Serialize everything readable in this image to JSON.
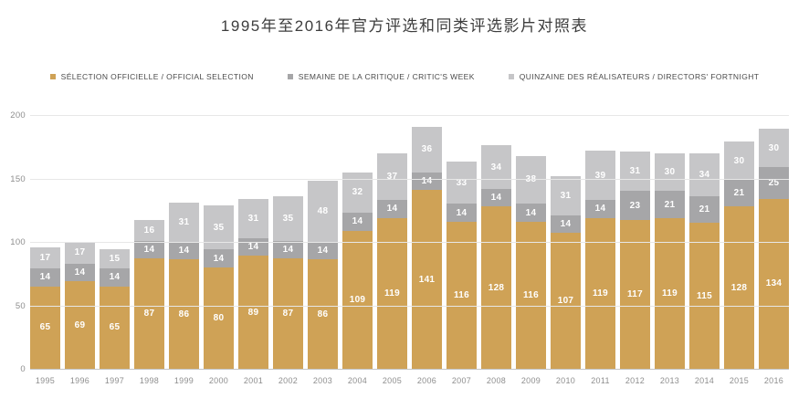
{
  "chart_data": {
    "type": "bar",
    "stacked": true,
    "title": "1995年至2016年官方评选和同类评选影片对照表",
    "categories": [
      "1995",
      "1996",
      "1997",
      "1998",
      "1999",
      "2000",
      "2001",
      "2002",
      "2003",
      "2004",
      "2005",
      "2006",
      "2007",
      "2008",
      "2009",
      "2010",
      "2011",
      "2012",
      "2013",
      "2014",
      "2015",
      "2016"
    ],
    "series": [
      {
        "name": "SÉLECTION OFFICIELLE / OFFICIAL SELECTION",
        "color": "#CFA256",
        "values": [
          65,
          69,
          65,
          87,
          86,
          80,
          89,
          87,
          86,
          109,
          119,
          141,
          116,
          128,
          116,
          107,
          119,
          117,
          119,
          115,
          128,
          134
        ]
      },
      {
        "name": "SEMAINE DE LA CRITIQUE / CRITIC'S WEEK",
        "color": "#A6A6A8",
        "values": [
          14,
          14,
          14,
          14,
          14,
          14,
          14,
          14,
          14,
          14,
          14,
          14,
          14,
          14,
          14,
          14,
          14,
          23,
          21,
          21,
          21,
          25
        ]
      },
      {
        "name": "QUINZAINE DES RÉALISATEURS / DIRECTORS' FORTNIGHT",
        "color": "#C6C6C8",
        "values": [
          17,
          17,
          15,
          16,
          31,
          35,
          31,
          35,
          48,
          32,
          37,
          36,
          33,
          34,
          38,
          31,
          39,
          31,
          30,
          34,
          30,
          30
        ]
      }
    ],
    "xlabel": "",
    "ylabel": "",
    "ylim": [
      0,
      200
    ],
    "yticks": [
      0,
      50,
      100,
      150,
      200
    ],
    "grid": true,
    "legend_position": "top",
    "show_values_on_bars": true,
    "value_label_color": "#ffffff",
    "gridline_color": "#e7e7e7",
    "axis_line_color": "#c4c4c4",
    "axis_text_color": "#8e8e8e",
    "title_color": "#3d3d3d"
  }
}
